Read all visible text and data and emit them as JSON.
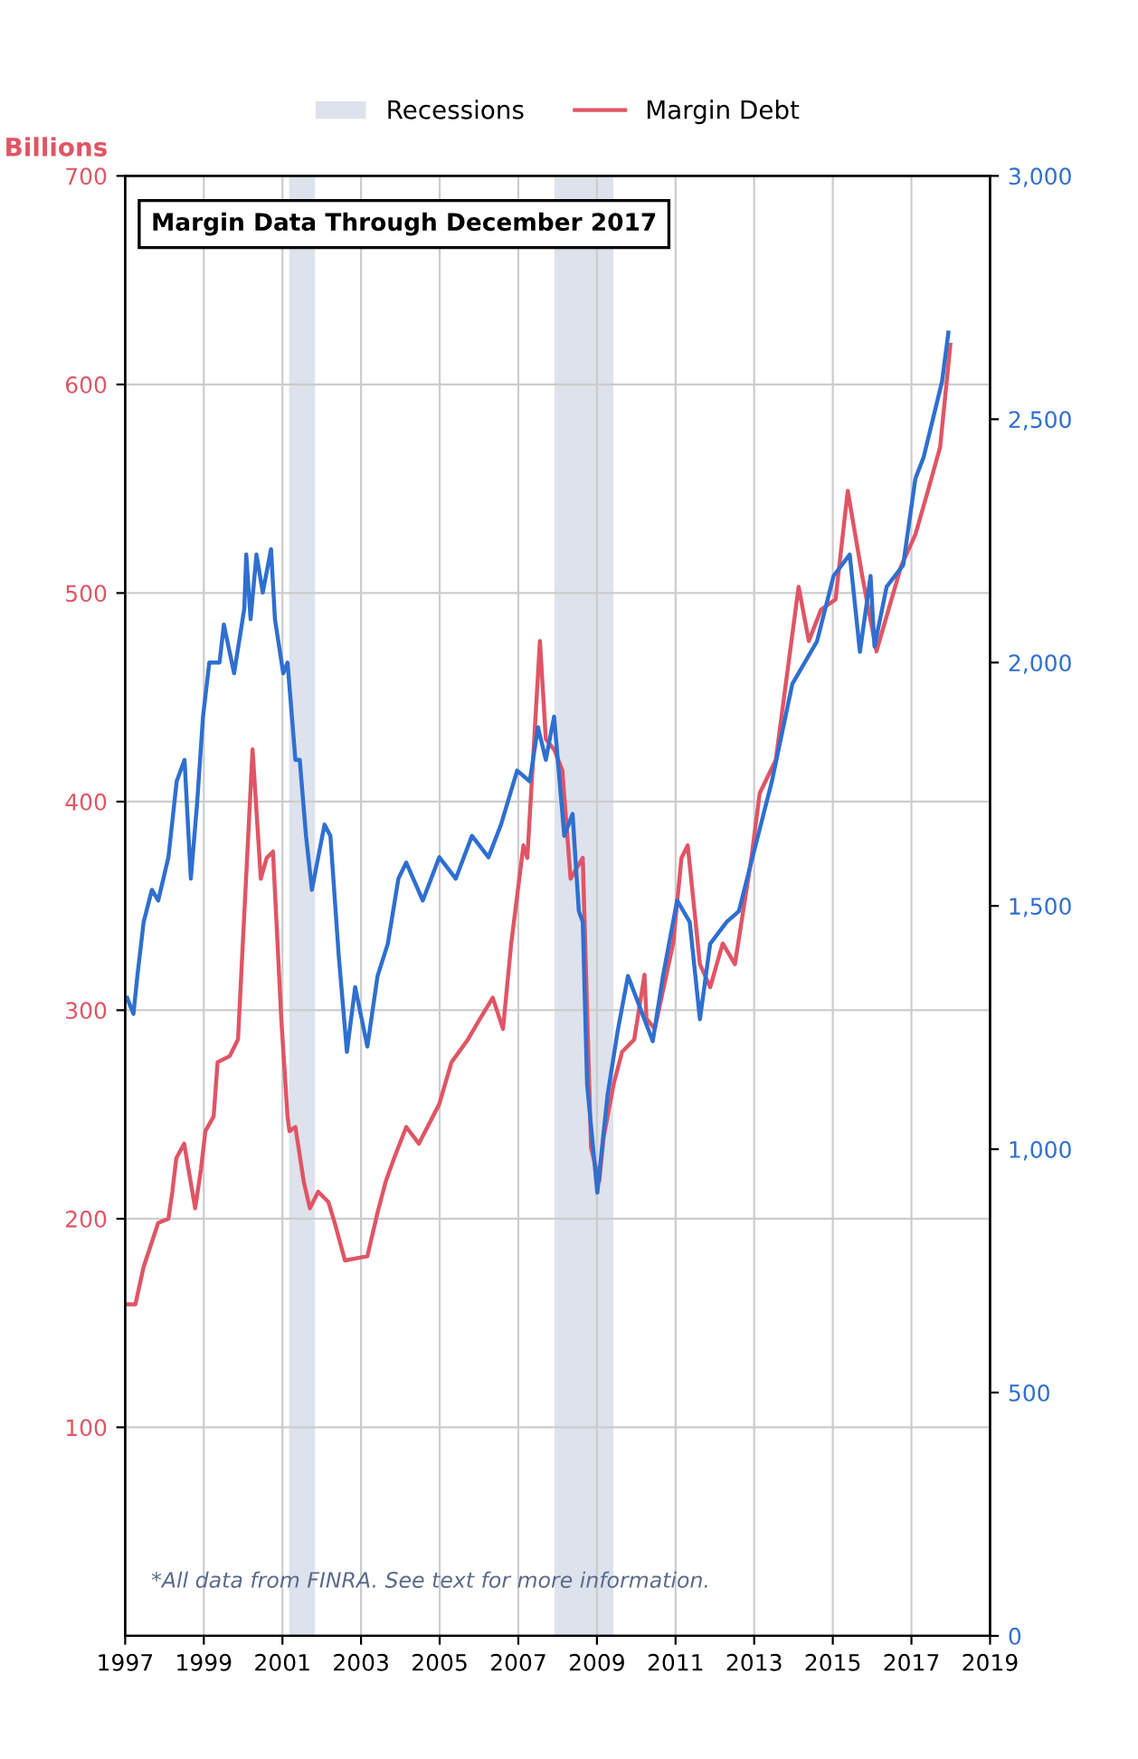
{
  "chart_data": {
    "type": "line",
    "ylabel": "Billions",
    "annotations": [
      "Margin Data Through December 2017",
      "*All data from FINRA. See text for more information."
    ],
    "xlim": [
      1997,
      2019
    ],
    "xticks": [
      1997,
      1999,
      2001,
      2003,
      2005,
      2007,
      2009,
      2011,
      2013,
      2015,
      2017,
      2019
    ],
    "ylim": [
      0,
      700
    ],
    "yticks": [
      100,
      200,
      300,
      400,
      500,
      600,
      700
    ],
    "y2lim": [
      0,
      3000
    ],
    "y2ticks": [
      {
        "value": 0,
        "label": "0"
      },
      {
        "value": 500,
        "label": "500"
      },
      {
        "value": 1000,
        "label": "1,000"
      },
      {
        "value": 1500,
        "label": "1,500"
      },
      {
        "value": 2000,
        "label": "2,000"
      },
      {
        "value": 2500,
        "label": "2,500"
      },
      {
        "value": 3000,
        "label": "3,000"
      }
    ],
    "grid": true,
    "legend": "top",
    "line_style": "solid",
    "bands": [
      {
        "axis": "x",
        "from": 2001.17,
        "to": 2001.83,
        "label": "Recessions",
        "color": "#dde2ec"
      },
      {
        "axis": "x",
        "from": 2007.92,
        "to": 2009.42,
        "color": "#dde2ec"
      }
    ],
    "series": [
      {
        "name": "Margin Debt",
        "color": "#e05565",
        "x": [
          1997.0,
          1997.26,
          1997.47,
          1997.84,
          1998.1,
          1998.2,
          1998.3,
          1998.5,
          1998.78,
          1998.93,
          1999.04,
          1999.25,
          1999.35,
          1999.66,
          1999.87,
          2000.24,
          2000.45,
          2000.6,
          2000.76,
          2000.97,
          2001.13,
          2001.18,
          2001.33,
          2001.54,
          2001.7,
          2001.91,
          2002.17,
          2002.33,
          2002.59,
          2003.16,
          2003.42,
          2003.63,
          2003.84,
          2004.15,
          2004.47,
          2004.99,
          2005.3,
          2005.72,
          2006.03,
          2006.35,
          2006.61,
          2006.82,
          2007.13,
          2007.23,
          2007.55,
          2007.7,
          2007.91,
          2008.12,
          2008.33,
          2008.64,
          2008.85,
          2009.06,
          2009.17,
          2009.43,
          2009.64,
          2009.95,
          2010.21,
          2010.26,
          2010.47,
          2010.94,
          2011.15,
          2011.31,
          2011.62,
          2011.88,
          2012.2,
          2012.51,
          2012.93,
          2013.14,
          2013.55,
          2014.13,
          2014.39,
          2014.7,
          2015.07,
          2015.38,
          2015.75,
          2016.11,
          2016.74,
          2017.1,
          2017.42,
          2017.73,
          2017.99
        ],
        "values": [
          159,
          159,
          177,
          198,
          200,
          213,
          229,
          236,
          205,
          224,
          242,
          249,
          275,
          278,
          286,
          425,
          363,
          373,
          376,
          296,
          249,
          242,
          244,
          218,
          205,
          213,
          208,
          198,
          180,
          182,
          203,
          218,
          229,
          244,
          236,
          255,
          275,
          286,
          296,
          306,
          291,
          332,
          379,
          373,
          477,
          430,
          425,
          415,
          363,
          373,
          234,
          218,
          239,
          265,
          280,
          286,
          317,
          296,
          291,
          332,
          373,
          379,
          322,
          311,
          332,
          322,
          373,
          404,
          420,
          503,
          477,
          492,
          497,
          549,
          508,
          472,
          513,
          528,
          549,
          570,
          619
        ]
      },
      {
        "color": "#2f6fd0",
        "axis": "y2",
        "x": [
          1997.05,
          1997.21,
          1997.31,
          1997.47,
          1997.68,
          1997.84,
          1998.1,
          1998.31,
          1998.51,
          1998.67,
          1998.83,
          1998.98,
          1999.14,
          1999.4,
          1999.51,
          1999.77,
          2000.03,
          2000.08,
          2000.19,
          2000.34,
          2000.5,
          2000.71,
          2000.81,
          2001.02,
          2001.13,
          2001.33,
          2001.44,
          2001.6,
          2001.75,
          2002.07,
          2002.22,
          2002.43,
          2002.64,
          2002.85,
          2003.16,
          2003.42,
          2003.68,
          2003.95,
          2004.15,
          2004.57,
          2004.99,
          2005.41,
          2005.82,
          2006.24,
          2006.56,
          2006.97,
          2007.29,
          2007.5,
          2007.7,
          2007.91,
          2008.17,
          2008.38,
          2008.54,
          2008.64,
          2008.75,
          2009.01,
          2009.27,
          2009.53,
          2009.79,
          2010.42,
          2010.68,
          2011.04,
          2011.36,
          2011.62,
          2011.88,
          2012.3,
          2012.61,
          2012.82,
          2013.45,
          2013.97,
          2014.6,
          2015.02,
          2015.43,
          2015.69,
          2015.96,
          2016.06,
          2016.37,
          2016.79,
          2017.1,
          2017.31,
          2017.78,
          2017.94
        ],
        "values": [
          1311,
          1278,
          1356,
          1467,
          1533,
          1511,
          1600,
          1756,
          1800,
          1556,
          1711,
          1889,
          2000,
          2000,
          2078,
          1978,
          2111,
          2222,
          2089,
          2222,
          2144,
          2233,
          2089,
          1978,
          2000,
          1800,
          1800,
          1644,
          1533,
          1667,
          1644,
          1400,
          1200,
          1333,
          1211,
          1356,
          1422,
          1556,
          1589,
          1511,
          1600,
          1556,
          1644,
          1600,
          1667,
          1778,
          1756,
          1867,
          1800,
          1889,
          1644,
          1689,
          1489,
          1467,
          1133,
          911,
          1111,
          1244,
          1356,
          1222,
          1356,
          1511,
          1467,
          1267,
          1422,
          1467,
          1489,
          1556,
          1756,
          1956,
          2044,
          2178,
          2222,
          2022,
          2178,
          2033,
          2156,
          2200,
          2378,
          2422,
          2578,
          2678
        ]
      }
    ]
  }
}
